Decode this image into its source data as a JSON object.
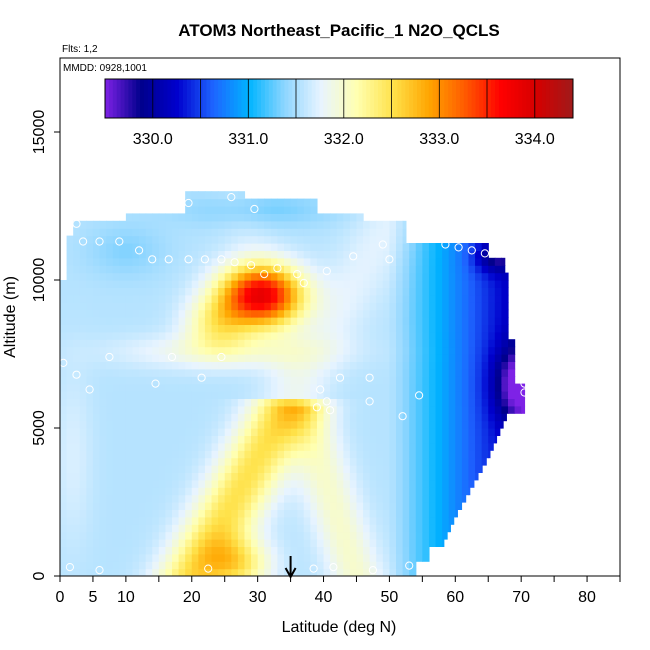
{
  "chart_data": {
    "type": "heatmap",
    "title": "ATOM3 Northeast_Pacific_1 N2O_QCLS",
    "subtitle_flights": "Flts: 1,2",
    "subtitle_dates": "MMDD: 0928,1001",
    "xlabel": "Latitude (deg N)",
    "ylabel": "Altitude (m)",
    "xlim": [
      0,
      85
    ],
    "ylim": [
      0,
      17500
    ],
    "x_ticks": [
      0,
      5,
      10,
      15,
      20,
      25,
      30,
      35,
      40,
      45,
      50,
      55,
      60,
      65,
      70,
      75,
      80,
      85
    ],
    "x_tick_labels": [
      "0",
      "5",
      "10",
      "",
      "20",
      "",
      "30",
      "",
      "40",
      "",
      "50",
      "",
      "60",
      "",
      "70",
      "",
      "80",
      ""
    ],
    "y_ticks": [
      0,
      5000,
      10000,
      15000
    ],
    "y_tick_labels": [
      "0",
      "5000",
      "10000",
      "15000"
    ],
    "colorbar": {
      "min": 329.5,
      "max": 334.4,
      "tick_values": [
        330.0,
        331.0,
        332.0,
        333.0,
        334.0
      ],
      "tick_labels": [
        "330.0",
        "331.0",
        "332.0",
        "333.0",
        "334.0"
      ],
      "colors": [
        "#7e22e6",
        "#00008c",
        "#0000cd",
        "#1e64ff",
        "#00b4ff",
        "#8fd6ff",
        "#e8f4ff",
        "#ffffb0",
        "#ffe24a",
        "#ffa500",
        "#ff5a00",
        "#ff0000",
        "#d40000",
        "#a01a1a"
      ]
    },
    "arrow_marker_latitude": 35,
    "grid": false,
    "legend": "colorbar-top",
    "obs_points": [
      {
        "x": 0.5,
        "y": 7200
      },
      {
        "x": 1.5,
        "y": 300
      },
      {
        "x": 2.5,
        "y": 6800
      },
      {
        "x": 2.5,
        "y": 11900
      },
      {
        "x": 3.5,
        "y": 11300
      },
      {
        "x": 4.5,
        "y": 6300
      },
      {
        "x": 6,
        "y": 11300
      },
      {
        "x": 6,
        "y": 200
      },
      {
        "x": 7.5,
        "y": 7400
      },
      {
        "x": 9,
        "y": 11300
      },
      {
        "x": 10.5,
        "y": 12400
      },
      {
        "x": 12,
        "y": 11000
      },
      {
        "x": 14,
        "y": 10700
      },
      {
        "x": 14.5,
        "y": 6500
      },
      {
        "x": 16.5,
        "y": 10700
      },
      {
        "x": 17,
        "y": 7400
      },
      {
        "x": 19.5,
        "y": 10700
      },
      {
        "x": 19.5,
        "y": 12600
      },
      {
        "x": 21.5,
        "y": 6700
      },
      {
        "x": 22,
        "y": 10700
      },
      {
        "x": 22.5,
        "y": 250
      },
      {
        "x": 24.5,
        "y": 10700
      },
      {
        "x": 24.5,
        "y": 7400
      },
      {
        "x": 26,
        "y": 12800
      },
      {
        "x": 26.5,
        "y": 10600
      },
      {
        "x": 29,
        "y": 10500
      },
      {
        "x": 29.5,
        "y": 12400
      },
      {
        "x": 31,
        "y": 10200
      },
      {
        "x": 33,
        "y": 10400
      },
      {
        "x": 36,
        "y": 10200
      },
      {
        "x": 37,
        "y": 9900
      },
      {
        "x": 38.5,
        "y": 250
      },
      {
        "x": 39,
        "y": 5700
      },
      {
        "x": 39.5,
        "y": 6300
      },
      {
        "x": 40.5,
        "y": 10300
      },
      {
        "x": 40.5,
        "y": 5900
      },
      {
        "x": 41,
        "y": 5600
      },
      {
        "x": 41.5,
        "y": 300
      },
      {
        "x": 42.5,
        "y": 6700
      },
      {
        "x": 44.5,
        "y": 10800
      },
      {
        "x": 47,
        "y": 6700
      },
      {
        "x": 47,
        "y": 5900
      },
      {
        "x": 47.5,
        "y": 200
      },
      {
        "x": 49,
        "y": 11200
      },
      {
        "x": 50,
        "y": 10700
      },
      {
        "x": 52,
        "y": 5400
      },
      {
        "x": 53,
        "y": 350
      },
      {
        "x": 54.5,
        "y": 6100
      },
      {
        "x": 58.5,
        "y": 11200
      },
      {
        "x": 60.5,
        "y": 11100
      },
      {
        "x": 62.5,
        "y": 11000
      },
      {
        "x": 64.5,
        "y": 10900
      },
      {
        "x": 68.5,
        "y": 10800
      },
      {
        "x": 70.5,
        "y": 6500
      },
      {
        "x": 70.5,
        "y": 6200
      }
    ]
  }
}
